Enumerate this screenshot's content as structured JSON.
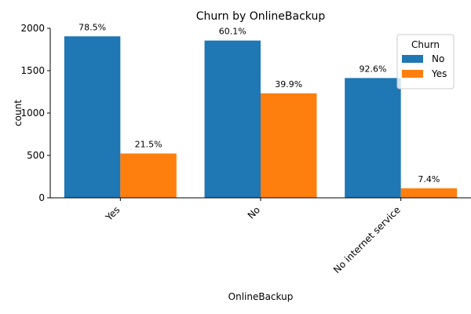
{
  "chart_data": {
    "type": "bar",
    "title": "Churn by OnlineBackup",
    "xlabel": "OnlineBackup",
    "ylabel": "count",
    "categories": [
      "Yes",
      "No",
      "No internet service"
    ],
    "ylim": [
      0,
      2000
    ],
    "yticks": [
      "0",
      "500",
      "1000",
      "1500",
      "2000"
    ],
    "grid": false,
    "legend": {
      "title": "Churn",
      "placement": "top-right"
    },
    "series": [
      {
        "name": "No",
        "color": "#1f77b4",
        "values": [
          1905,
          1855,
          1413
        ],
        "labels": [
          "78.5%",
          "60.1%",
          "92.6%"
        ]
      },
      {
        "name": "Yes",
        "color": "#ff7f0e",
        "values": [
          523,
          1233,
          113
        ],
        "labels": [
          "21.5%",
          "39.9%",
          "7.4%"
        ]
      }
    ]
  }
}
